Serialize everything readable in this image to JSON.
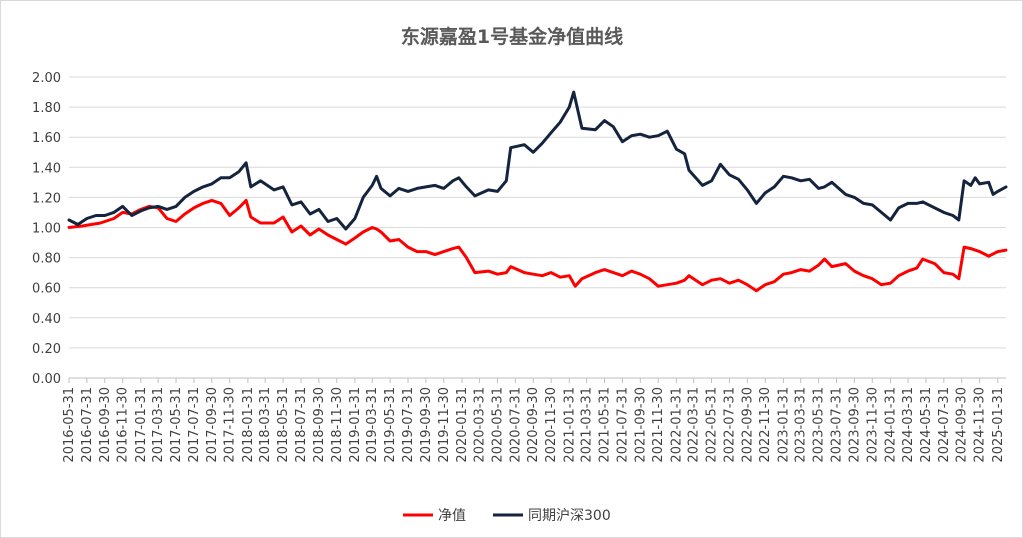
{
  "chart_data": {
    "type": "line",
    "title": "东源嘉盈1号基金净值曲线",
    "xlabel": "",
    "ylabel": "",
    "ylim": [
      0,
      2.0
    ],
    "yticks": [
      "0.00",
      "0.20",
      "0.40",
      "0.60",
      "0.80",
      "1.00",
      "1.20",
      "1.40",
      "1.60",
      "1.80",
      "2.00"
    ],
    "xlim": [
      "2016-05-31",
      "2025-02-28"
    ],
    "xticks": [
      "2016-05-31",
      "2016-07-31",
      "2016-09-30",
      "2016-11-30",
      "2017-01-31",
      "2017-03-31",
      "2017-05-31",
      "2017-07-31",
      "2017-09-30",
      "2017-11-30",
      "2018-01-31",
      "2018-03-31",
      "2018-05-31",
      "2018-07-31",
      "2018-09-30",
      "2018-11-30",
      "2019-01-31",
      "2019-03-31",
      "2019-05-31",
      "2019-07-31",
      "2019-09-30",
      "2019-11-30",
      "2020-01-31",
      "2020-03-31",
      "2020-05-31",
      "2020-07-31",
      "2020-09-30",
      "2020-11-30",
      "2021-01-31",
      "2021-03-31",
      "2021-05-31",
      "2021-07-31",
      "2021-09-30",
      "2021-11-30",
      "2022-01-31",
      "2022-03-31",
      "2022-05-31",
      "2022-07-31",
      "2022-09-30",
      "2022-11-30",
      "2023-01-31",
      "2023-03-31",
      "2023-05-31",
      "2023-07-31",
      "2023-09-30",
      "2023-11-30",
      "2024-01-31",
      "2024-03-31",
      "2024-05-31",
      "2024-07-31",
      "2024-09-30",
      "2024-11-30",
      "2025-01-31"
    ],
    "grid": true,
    "legend_position": "bottom",
    "series": [
      {
        "name": "净值",
        "color": "#ff0000",
        "points": [
          [
            "2016-05-31",
            1.0
          ],
          [
            "2016-07-15",
            1.01
          ],
          [
            "2016-09-15",
            1.03
          ],
          [
            "2016-10-31",
            1.06
          ],
          [
            "2016-11-30",
            1.1
          ],
          [
            "2016-12-31",
            1.09
          ],
          [
            "2017-01-31",
            1.12
          ],
          [
            "2017-02-28",
            1.14
          ],
          [
            "2017-03-31",
            1.13
          ],
          [
            "2017-04-30",
            1.06
          ],
          [
            "2017-05-31",
            1.04
          ],
          [
            "2017-06-30",
            1.09
          ],
          [
            "2017-07-31",
            1.13
          ],
          [
            "2017-08-31",
            1.16
          ],
          [
            "2017-09-30",
            1.18
          ],
          [
            "2017-10-31",
            1.16
          ],
          [
            "2017-11-30",
            1.08
          ],
          [
            "2017-12-31",
            1.13
          ],
          [
            "2018-01-25",
            1.18
          ],
          [
            "2018-02-10",
            1.07
          ],
          [
            "2018-03-15",
            1.03
          ],
          [
            "2018-04-30",
            1.03
          ],
          [
            "2018-05-31",
            1.07
          ],
          [
            "2018-06-30",
            0.97
          ],
          [
            "2018-07-31",
            1.01
          ],
          [
            "2018-08-31",
            0.95
          ],
          [
            "2018-09-30",
            0.99
          ],
          [
            "2018-10-31",
            0.95
          ],
          [
            "2018-11-30",
            0.92
          ],
          [
            "2018-12-31",
            0.89
          ],
          [
            "2019-01-31",
            0.93
          ],
          [
            "2019-02-28",
            0.97
          ],
          [
            "2019-03-31",
            1.0
          ],
          [
            "2019-04-15",
            0.99
          ],
          [
            "2019-04-30",
            0.97
          ],
          [
            "2019-05-31",
            0.91
          ],
          [
            "2019-06-30",
            0.92
          ],
          [
            "2019-07-31",
            0.87
          ],
          [
            "2019-08-31",
            0.84
          ],
          [
            "2019-09-30",
            0.84
          ],
          [
            "2019-10-31",
            0.82
          ],
          [
            "2019-11-30",
            0.84
          ],
          [
            "2019-12-31",
            0.86
          ],
          [
            "2020-01-20",
            0.87
          ],
          [
            "2020-02-15",
            0.8
          ],
          [
            "2020-03-15",
            0.7
          ],
          [
            "2020-04-30",
            0.71
          ],
          [
            "2020-05-31",
            0.69
          ],
          [
            "2020-06-30",
            0.7
          ],
          [
            "2020-07-15",
            0.74
          ],
          [
            "2020-08-31",
            0.7
          ],
          [
            "2020-09-30",
            0.69
          ],
          [
            "2020-10-31",
            0.68
          ],
          [
            "2020-11-30",
            0.7
          ],
          [
            "2020-12-31",
            0.67
          ],
          [
            "2021-01-31",
            0.68
          ],
          [
            "2021-02-20",
            0.61
          ],
          [
            "2021-03-15",
            0.66
          ],
          [
            "2021-04-30",
            0.7
          ],
          [
            "2021-05-31",
            0.72
          ],
          [
            "2021-06-30",
            0.7
          ],
          [
            "2021-07-31",
            0.68
          ],
          [
            "2021-08-31",
            0.71
          ],
          [
            "2021-09-30",
            0.69
          ],
          [
            "2021-10-31",
            0.66
          ],
          [
            "2021-11-30",
            0.61
          ],
          [
            "2021-12-31",
            0.62
          ],
          [
            "2022-01-31",
            0.63
          ],
          [
            "2022-02-28",
            0.65
          ],
          [
            "2022-03-15",
            0.68
          ],
          [
            "2022-04-30",
            0.62
          ],
          [
            "2022-05-31",
            0.65
          ],
          [
            "2022-06-30",
            0.66
          ],
          [
            "2022-07-31",
            0.63
          ],
          [
            "2022-08-31",
            0.65
          ],
          [
            "2022-09-30",
            0.62
          ],
          [
            "2022-10-31",
            0.58
          ],
          [
            "2022-11-30",
            0.62
          ],
          [
            "2022-12-31",
            0.64
          ],
          [
            "2023-01-31",
            0.69
          ],
          [
            "2023-02-28",
            0.7
          ],
          [
            "2023-03-31",
            0.72
          ],
          [
            "2023-04-30",
            0.71
          ],
          [
            "2023-05-31",
            0.75
          ],
          [
            "2023-06-20",
            0.79
          ],
          [
            "2023-07-15",
            0.74
          ],
          [
            "2023-08-31",
            0.76
          ],
          [
            "2023-09-30",
            0.71
          ],
          [
            "2023-10-31",
            0.68
          ],
          [
            "2023-11-30",
            0.66
          ],
          [
            "2023-12-31",
            0.62
          ],
          [
            "2024-01-31",
            0.63
          ],
          [
            "2024-02-28",
            0.68
          ],
          [
            "2024-03-31",
            0.71
          ],
          [
            "2024-04-30",
            0.73
          ],
          [
            "2024-05-20",
            0.79
          ],
          [
            "2024-06-30",
            0.76
          ],
          [
            "2024-07-31",
            0.7
          ],
          [
            "2024-08-31",
            0.69
          ],
          [
            "2024-09-20",
            0.66
          ],
          [
            "2024-10-08",
            0.87
          ],
          [
            "2024-10-31",
            0.86
          ],
          [
            "2024-11-30",
            0.84
          ],
          [
            "2024-12-31",
            0.81
          ],
          [
            "2025-01-31",
            0.84
          ],
          [
            "2025-02-28",
            0.85
          ]
        ]
      },
      {
        "name": "同期沪深300",
        "color": "#14233e",
        "points": [
          [
            "2016-05-31",
            1.05
          ],
          [
            "2016-06-30",
            1.02
          ],
          [
            "2016-07-31",
            1.06
          ],
          [
            "2016-08-31",
            1.08
          ],
          [
            "2016-09-30",
            1.08
          ],
          [
            "2016-10-31",
            1.1
          ],
          [
            "2016-11-30",
            1.14
          ],
          [
            "2016-12-31",
            1.08
          ],
          [
            "2017-01-31",
            1.11
          ],
          [
            "2017-02-28",
            1.13
          ],
          [
            "2017-03-31",
            1.14
          ],
          [
            "2017-04-30",
            1.12
          ],
          [
            "2017-05-31",
            1.14
          ],
          [
            "2017-06-30",
            1.2
          ],
          [
            "2017-07-31",
            1.24
          ],
          [
            "2017-08-31",
            1.27
          ],
          [
            "2017-09-30",
            1.29
          ],
          [
            "2017-10-31",
            1.33
          ],
          [
            "2017-11-30",
            1.33
          ],
          [
            "2017-12-31",
            1.37
          ],
          [
            "2018-01-25",
            1.43
          ],
          [
            "2018-02-10",
            1.27
          ],
          [
            "2018-03-15",
            1.31
          ],
          [
            "2018-04-30",
            1.25
          ],
          [
            "2018-05-31",
            1.27
          ],
          [
            "2018-06-30",
            1.15
          ],
          [
            "2018-07-31",
            1.17
          ],
          [
            "2018-08-31",
            1.09
          ],
          [
            "2018-09-30",
            1.12
          ],
          [
            "2018-10-31",
            1.04
          ],
          [
            "2018-11-30",
            1.06
          ],
          [
            "2018-12-31",
            0.99
          ],
          [
            "2019-01-31",
            1.06
          ],
          [
            "2019-02-28",
            1.2
          ],
          [
            "2019-03-31",
            1.28
          ],
          [
            "2019-04-15",
            1.34
          ],
          [
            "2019-04-30",
            1.26
          ],
          [
            "2019-05-31",
            1.21
          ],
          [
            "2019-06-30",
            1.26
          ],
          [
            "2019-07-31",
            1.24
          ],
          [
            "2019-08-31",
            1.26
          ],
          [
            "2019-09-30",
            1.27
          ],
          [
            "2019-10-31",
            1.28
          ],
          [
            "2019-11-30",
            1.26
          ],
          [
            "2019-12-31",
            1.31
          ],
          [
            "2020-01-20",
            1.33
          ],
          [
            "2020-02-15",
            1.27
          ],
          [
            "2020-03-15",
            1.21
          ],
          [
            "2020-04-30",
            1.25
          ],
          [
            "2020-05-31",
            1.24
          ],
          [
            "2020-06-30",
            1.31
          ],
          [
            "2020-07-15",
            1.53
          ],
          [
            "2020-08-31",
            1.55
          ],
          [
            "2020-09-30",
            1.5
          ],
          [
            "2020-10-31",
            1.56
          ],
          [
            "2020-11-30",
            1.63
          ],
          [
            "2020-12-31",
            1.7
          ],
          [
            "2021-01-31",
            1.8
          ],
          [
            "2021-02-15",
            1.9
          ],
          [
            "2021-03-15",
            1.66
          ],
          [
            "2021-04-30",
            1.65
          ],
          [
            "2021-05-31",
            1.71
          ],
          [
            "2021-06-30",
            1.67
          ],
          [
            "2021-07-31",
            1.57
          ],
          [
            "2021-08-31",
            1.61
          ],
          [
            "2021-09-30",
            1.62
          ],
          [
            "2021-10-31",
            1.6
          ],
          [
            "2021-11-30",
            1.61
          ],
          [
            "2021-12-31",
            1.64
          ],
          [
            "2022-01-31",
            1.52
          ],
          [
            "2022-02-28",
            1.49
          ],
          [
            "2022-03-15",
            1.38
          ],
          [
            "2022-04-30",
            1.28
          ],
          [
            "2022-05-31",
            1.31
          ],
          [
            "2022-06-30",
            1.42
          ],
          [
            "2022-07-31",
            1.35
          ],
          [
            "2022-08-31",
            1.32
          ],
          [
            "2022-09-30",
            1.25
          ],
          [
            "2022-10-31",
            1.16
          ],
          [
            "2022-11-30",
            1.23
          ],
          [
            "2022-12-31",
            1.27
          ],
          [
            "2023-01-31",
            1.34
          ],
          [
            "2023-02-28",
            1.33
          ],
          [
            "2023-03-31",
            1.31
          ],
          [
            "2023-04-30",
            1.32
          ],
          [
            "2023-05-31",
            1.26
          ],
          [
            "2023-06-20",
            1.27
          ],
          [
            "2023-07-15",
            1.3
          ],
          [
            "2023-08-31",
            1.22
          ],
          [
            "2023-09-30",
            1.2
          ],
          [
            "2023-10-31",
            1.16
          ],
          [
            "2023-11-30",
            1.15
          ],
          [
            "2023-12-31",
            1.1
          ],
          [
            "2024-01-31",
            1.05
          ],
          [
            "2024-02-28",
            1.13
          ],
          [
            "2024-03-31",
            1.16
          ],
          [
            "2024-04-30",
            1.16
          ],
          [
            "2024-05-20",
            1.17
          ],
          [
            "2024-06-30",
            1.13
          ],
          [
            "2024-07-31",
            1.1
          ],
          [
            "2024-08-31",
            1.08
          ],
          [
            "2024-09-20",
            1.05
          ],
          [
            "2024-10-08",
            1.31
          ],
          [
            "2024-10-31",
            1.28
          ],
          [
            "2024-11-15",
            1.33
          ],
          [
            "2024-11-30",
            1.29
          ],
          [
            "2024-12-31",
            1.3
          ],
          [
            "2025-01-15",
            1.22
          ],
          [
            "2025-01-31",
            1.24
          ],
          [
            "2025-02-28",
            1.27
          ]
        ]
      }
    ]
  }
}
